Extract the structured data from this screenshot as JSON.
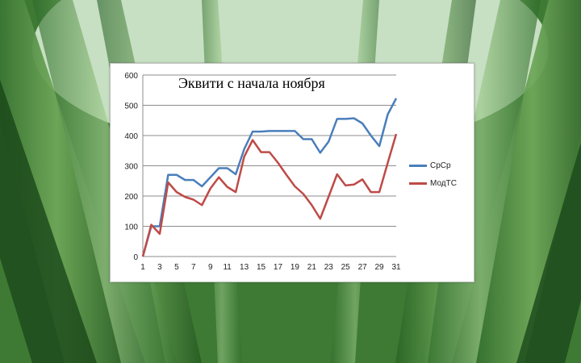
{
  "background": {
    "icon": "bamboo-forest",
    "sky": "#e7f5e4",
    "dark": "#123a14"
  },
  "chart_data": {
    "type": "line",
    "title": "Эквити с начала ноября",
    "x": [
      1,
      2,
      3,
      4,
      5,
      6,
      7,
      8,
      9,
      10,
      11,
      12,
      13,
      14,
      15,
      16,
      17,
      18,
      19,
      20,
      21,
      22,
      23,
      24,
      25,
      26,
      27,
      28,
      29,
      30,
      31
    ],
    "x_tick_labels": [
      "1",
      "3",
      "5",
      "7",
      "9",
      "11",
      "13",
      "15",
      "17",
      "19",
      "21",
      "23",
      "25",
      "27",
      "29",
      "31"
    ],
    "ylim": [
      0,
      600
    ],
    "y_ticks": [
      0,
      100,
      200,
      300,
      400,
      500,
      600
    ],
    "grid": true,
    "legend_position": "right",
    "series": [
      {
        "name": "СрСр",
        "color": "#4a7ebb",
        "values": [
          0,
          100,
          100,
          270,
          270,
          253,
          253,
          232,
          262,
          292,
          292,
          272,
          355,
          413,
          413,
          415,
          415,
          415,
          415,
          388,
          388,
          343,
          380,
          455,
          455,
          457,
          440,
          400,
          365,
          470,
          523
        ]
      },
      {
        "name": "МодТС",
        "color": "#be4b48",
        "values": [
          0,
          105,
          75,
          245,
          213,
          197,
          188,
          170,
          225,
          262,
          230,
          213,
          330,
          385,
          345,
          345,
          310,
          270,
          232,
          207,
          170,
          125,
          198,
          272,
          235,
          238,
          255,
          213,
          213,
          310,
          405
        ]
      }
    ]
  }
}
